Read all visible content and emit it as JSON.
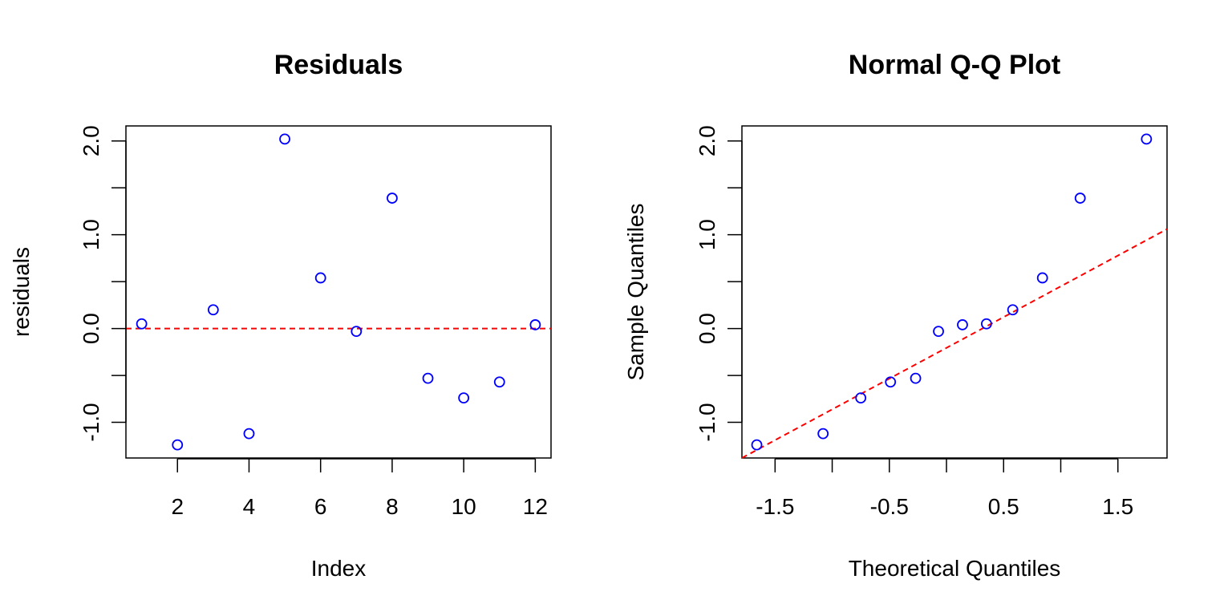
{
  "chart_data": [
    {
      "type": "scatter",
      "title": "Residuals",
      "xlabel": "Index",
      "ylabel": "residuals",
      "xlim": [
        0.56,
        12.44
      ],
      "ylim": [
        -1.38,
        2.16
      ],
      "x_ticks": [
        2,
        4,
        6,
        8,
        10,
        12
      ],
      "x_tick_labels": [
        "2",
        "4",
        "6",
        "8",
        "10",
        "12"
      ],
      "x_minor_ticks": [],
      "y_ticks": [
        -1.0,
        -0.5,
        0.0,
        0.5,
        1.0,
        1.5,
        2.0
      ],
      "y_tick_labels": [
        "-1.0",
        "",
        "0.0",
        "",
        "1.0",
        "",
        "2.0"
      ],
      "grid": false,
      "series": [
        {
          "marker": "open-circle",
          "color": "#0000ff",
          "x": [
            1,
            2,
            3,
            4,
            5,
            6,
            7,
            8,
            9,
            10,
            11,
            12
          ],
          "y": [
            0.05,
            -1.24,
            0.2,
            -1.12,
            2.02,
            0.54,
            -0.03,
            1.39,
            -0.53,
            -0.74,
            -0.57,
            0.04
          ]
        }
      ],
      "reference_line": {
        "kind": "horizontal",
        "y": 0,
        "color": "#ff0000",
        "style": "dashed"
      }
    },
    {
      "type": "scatter",
      "title": "Normal Q-Q Plot",
      "xlabel": "Theoretical Quantiles",
      "ylabel": "Sample Quantiles",
      "xlim": [
        -1.79,
        1.93
      ],
      "ylim": [
        -1.38,
        2.16
      ],
      "x_ticks": [
        -1.5,
        -0.5,
        0.5,
        1.5
      ],
      "x_tick_labels": [
        "-1.5",
        "-0.5",
        "0.5",
        "1.5"
      ],
      "x_minor_ticks": [
        -1.0,
        0.0,
        1.0
      ],
      "y_ticks": [
        -1.0,
        -0.5,
        0.0,
        0.5,
        1.0,
        1.5,
        2.0
      ],
      "y_tick_labels": [
        "-1.0",
        "",
        "0.0",
        "",
        "1.0",
        "",
        "2.0"
      ],
      "grid": false,
      "series": [
        {
          "marker": "open-circle",
          "color": "#0000ff",
          "x": [
            -1.66,
            -1.08,
            -0.75,
            -0.49,
            -0.27,
            -0.07,
            0.14,
            0.35,
            0.58,
            0.84,
            1.17,
            1.75
          ],
          "y": [
            -1.24,
            -1.12,
            -0.74,
            -0.57,
            -0.53,
            -0.03,
            0.04,
            0.05,
            0.2,
            0.54,
            1.39,
            2.02
          ]
        }
      ],
      "reference_line": {
        "kind": "line",
        "points": [
          [
            -1.79,
            -1.38
          ],
          [
            1.93,
            1.06
          ]
        ],
        "color": "#ff0000",
        "style": "dashed"
      }
    }
  ]
}
